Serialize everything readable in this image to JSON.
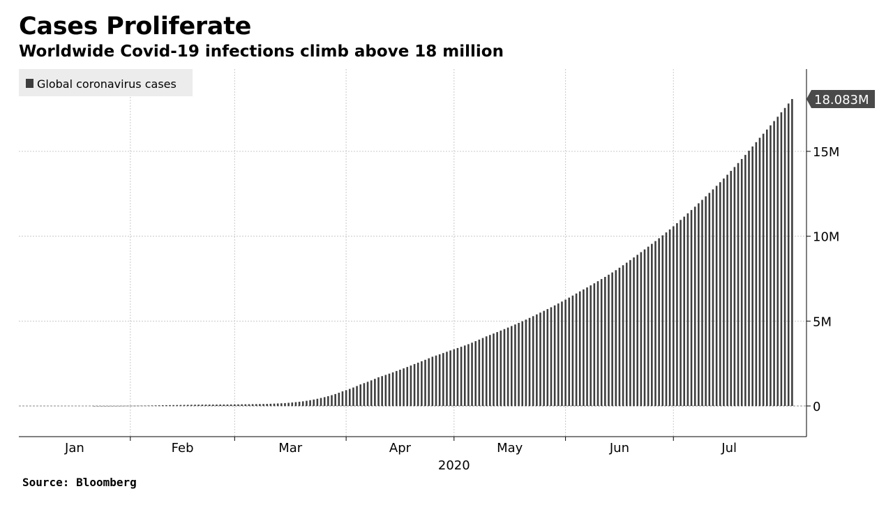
{
  "header": {
    "title": "Cases Proliferate",
    "subtitle": "Worldwide Covid-19 infections climb above 18 million"
  },
  "footer": {
    "source": "Source: Bloomberg"
  },
  "colors": {
    "bar": "#3d3d3d",
    "grid": "#c8c8c8",
    "legend_bg": "#ececec",
    "callout_bg": "#4a4a4a"
  },
  "chart_data": {
    "type": "bar",
    "title": "Cases Proliferate",
    "subtitle": "Worldwide Covid-19 infections climb above 18 million",
    "xlabel": "2020",
    "ylabel": "",
    "ylim": [
      0,
      20000000
    ],
    "yticks": [
      {
        "value": 0,
        "label": "0"
      },
      {
        "value": 5000000,
        "label": "5M"
      },
      {
        "value": 10000000,
        "label": "10M"
      },
      {
        "value": 15000000,
        "label": "15M"
      }
    ],
    "x_start": "2020-01-01",
    "x_end": "2020-08-07",
    "months": [
      {
        "label": "Jan",
        "start": "2020-01-01",
        "end": "2020-02-01"
      },
      {
        "label": "Feb",
        "start": "2020-02-01",
        "end": "2020-03-01"
      },
      {
        "label": "Mar",
        "start": "2020-03-01",
        "end": "2020-04-01"
      },
      {
        "label": "Apr",
        "start": "2020-04-01",
        "end": "2020-05-01"
      },
      {
        "label": "May",
        "start": "2020-05-01",
        "end": "2020-06-01"
      },
      {
        "label": "Jun",
        "start": "2020-06-01",
        "end": "2020-07-01"
      },
      {
        "label": "Jul",
        "start": "2020-07-01",
        "end": "2020-08-01"
      }
    ],
    "grid": true,
    "legend": {
      "position": "top-left",
      "entries": [
        "Global coronavirus cases"
      ]
    },
    "last_value_label": "18.083M",
    "series": [
      {
        "name": "Global coronavirus cases",
        "points": [
          [
            "2020-01-22",
            555
          ],
          [
            "2020-01-31",
            9800
          ],
          [
            "2020-02-10",
            43000
          ],
          [
            "2020-02-20",
            76000
          ],
          [
            "2020-02-29",
            87000
          ],
          [
            "2020-03-10",
            119000
          ],
          [
            "2020-03-15",
            168000
          ],
          [
            "2020-03-20",
            273000
          ],
          [
            "2020-03-25",
            470000
          ],
          [
            "2020-03-31",
            860000
          ],
          [
            "2020-04-05",
            1270000
          ],
          [
            "2020-04-10",
            1690000
          ],
          [
            "2020-04-15",
            2060000
          ],
          [
            "2020-04-20",
            2470000
          ],
          [
            "2020-04-25",
            2900000
          ],
          [
            "2020-04-30",
            3270000
          ],
          [
            "2020-05-05",
            3640000
          ],
          [
            "2020-05-10",
            4100000
          ],
          [
            "2020-05-15",
            4530000
          ],
          [
            "2020-05-20",
            4990000
          ],
          [
            "2020-05-25",
            5500000
          ],
          [
            "2020-05-31",
            6150000
          ],
          [
            "2020-06-05",
            6750000
          ],
          [
            "2020-06-10",
            7350000
          ],
          [
            "2020-06-15",
            8000000
          ],
          [
            "2020-06-20",
            8750000
          ],
          [
            "2020-06-25",
            9550000
          ],
          [
            "2020-06-30",
            10400000
          ],
          [
            "2020-07-05",
            11350000
          ],
          [
            "2020-07-10",
            12350000
          ],
          [
            "2020-07-15",
            13400000
          ],
          [
            "2020-07-20",
            14550000
          ],
          [
            "2020-07-25",
            15800000
          ],
          [
            "2020-07-31",
            17300000
          ],
          [
            "2020-08-03",
            18083000
          ]
        ]
      }
    ]
  }
}
